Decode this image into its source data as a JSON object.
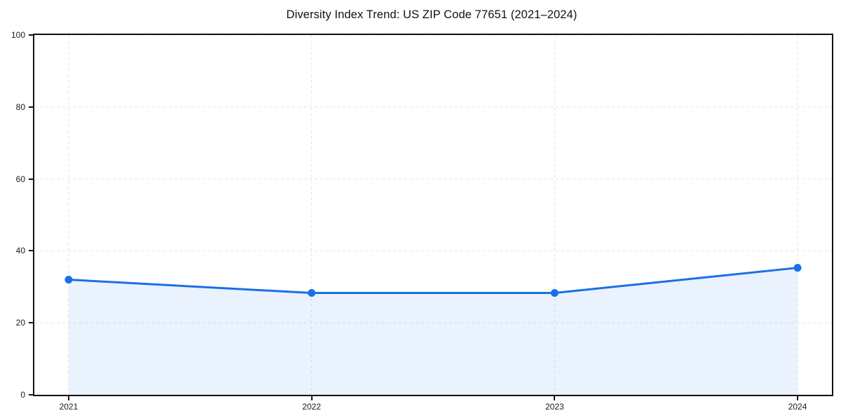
{
  "chart_data": {
    "type": "area",
    "title": "Diversity Index Trend: US ZIP Code 77651 (2021–2024)",
    "categories": [
      "2021",
      "2022",
      "2023",
      "2024"
    ],
    "series": [
      {
        "name": "Diversity Index",
        "values": [
          32.0,
          28.3,
          28.3,
          35.3
        ]
      }
    ],
    "xlabel": "",
    "ylabel": "",
    "ylim": [
      0,
      100
    ],
    "yticks": [
      0,
      20,
      40,
      60,
      80,
      100
    ],
    "grid": true,
    "grid_style": "dashed",
    "legend_position": "none",
    "line_color": "#1a6fe8",
    "marker_color": "#1a6fe8",
    "area_fill_color": "#1a6fe8",
    "area_fill_opacity": 0.09,
    "grid_color": "#e3e3e3",
    "spine_color": "#111111",
    "tick_label_color": "#1a1a1a",
    "x_margin_frac": 0.043
  }
}
